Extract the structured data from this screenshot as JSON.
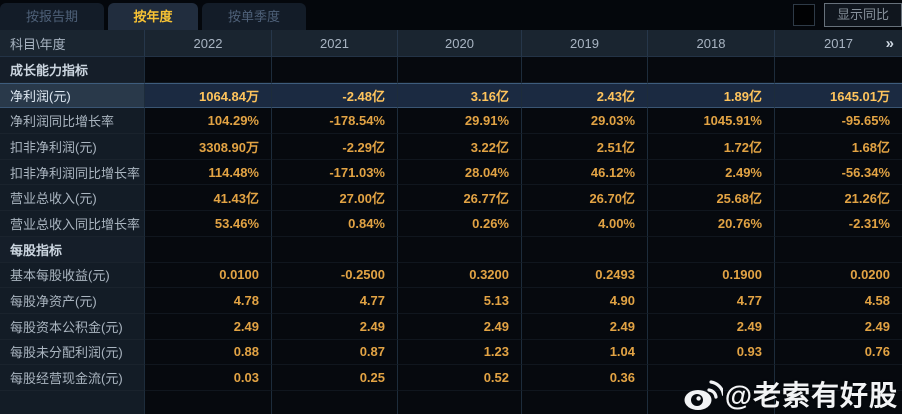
{
  "tabs": [
    {
      "label": "按报告期",
      "active": false
    },
    {
      "label": "按年度",
      "active": true
    },
    {
      "label": "按单季度",
      "active": false
    }
  ],
  "controls": {
    "show_yoy_label": "显示同比",
    "checkbox_checked": false
  },
  "table": {
    "corner_header": "科目\\年度",
    "years": [
      "2022",
      "2021",
      "2020",
      "2019",
      "2018",
      "2017"
    ],
    "more_chevron": "»",
    "rows": [
      {
        "type": "section",
        "label": "成长能力指标",
        "values": [
          "",
          "",
          "",
          "",
          "",
          ""
        ]
      },
      {
        "type": "highlight",
        "label": "净利润(元)",
        "values": [
          "1064.84万",
          "-2.48亿",
          "3.16亿",
          "2.43亿",
          "1.89亿",
          "1645.01万"
        ]
      },
      {
        "type": "data",
        "label": "净利润同比增长率",
        "values": [
          "104.29%",
          "-178.54%",
          "29.91%",
          "29.03%",
          "1045.91%",
          "-95.65%"
        ]
      },
      {
        "type": "data",
        "label": "扣非净利润(元)",
        "values": [
          "3308.90万",
          "-2.29亿",
          "3.22亿",
          "2.51亿",
          "1.72亿",
          "1.68亿"
        ]
      },
      {
        "type": "data",
        "label": "扣非净利润同比增长率",
        "values": [
          "114.48%",
          "-171.03%",
          "28.04%",
          "46.12%",
          "2.49%",
          "-56.34%"
        ]
      },
      {
        "type": "data",
        "label": "营业总收入(元)",
        "values": [
          "41.43亿",
          "27.00亿",
          "26.77亿",
          "26.70亿",
          "25.68亿",
          "21.26亿"
        ]
      },
      {
        "type": "data",
        "label": "营业总收入同比增长率",
        "values": [
          "53.46%",
          "0.84%",
          "0.26%",
          "4.00%",
          "20.76%",
          "-2.31%"
        ]
      },
      {
        "type": "section",
        "label": "每股指标",
        "values": [
          "",
          "",
          "",
          "",
          "",
          ""
        ]
      },
      {
        "type": "data",
        "label": "基本每股收益(元)",
        "values": [
          "0.0100",
          "-0.2500",
          "0.3200",
          "0.2493",
          "0.1900",
          "0.0200"
        ]
      },
      {
        "type": "data",
        "label": "每股净资产(元)",
        "values": [
          "4.78",
          "4.77",
          "5.13",
          "4.90",
          "4.77",
          "4.58"
        ]
      },
      {
        "type": "data",
        "label": "每股资本公积金(元)",
        "values": [
          "2.49",
          "2.49",
          "2.49",
          "2.49",
          "2.49",
          "2.49"
        ]
      },
      {
        "type": "data",
        "label": "每股未分配利润(元)",
        "values": [
          "0.88",
          "0.87",
          "1.23",
          "1.04",
          "0.93",
          "0.76"
        ]
      },
      {
        "type": "data",
        "label": "每股经营现金流(元)",
        "values": [
          "0.03",
          "0.25",
          "0.52",
          "0.36",
          "",
          ""
        ]
      },
      {
        "type": "data",
        "label": "",
        "values": [
          "",
          "",
          "",
          "",
          "",
          ""
        ]
      }
    ]
  },
  "watermark": {
    "handle": "@老索有好股",
    "icon": "weibo-icon"
  },
  "colors": {
    "value_gold": "#e2a344",
    "highlight_gold": "#ffc45c",
    "tab_active_text": "#f7c234",
    "highlight_row_bg": "#1b2a41",
    "header_bg": "#1a2530"
  }
}
